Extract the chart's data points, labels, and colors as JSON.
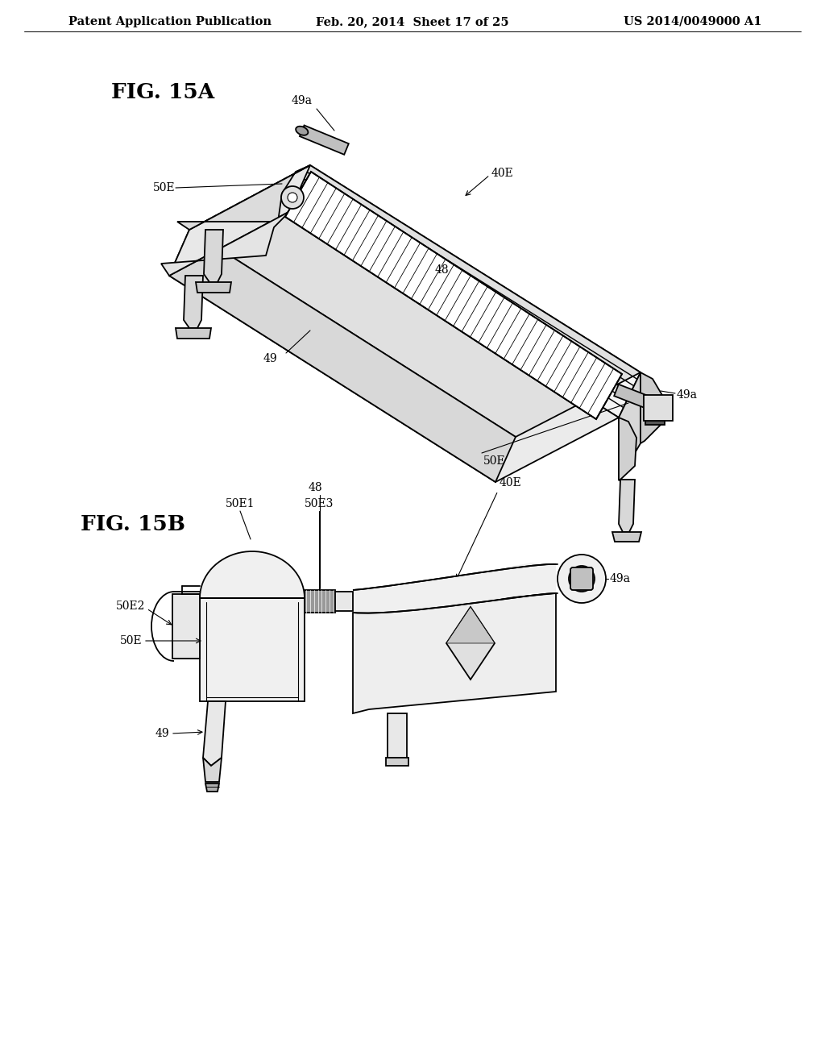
{
  "bg_color": "#ffffff",
  "line_color": "#000000",
  "header_left": "Patent Application Publication",
  "header_mid": "Feb. 20, 2014  Sheet 17 of 25",
  "header_right": "US 2014/0049000 A1",
  "fig_label_A": "FIG. 15A",
  "fig_label_B": "FIG. 15B",
  "header_fontsize": 10.5,
  "fig_label_fontsize": 19,
  "annotation_fontsize": 10,
  "lw": 1.3
}
